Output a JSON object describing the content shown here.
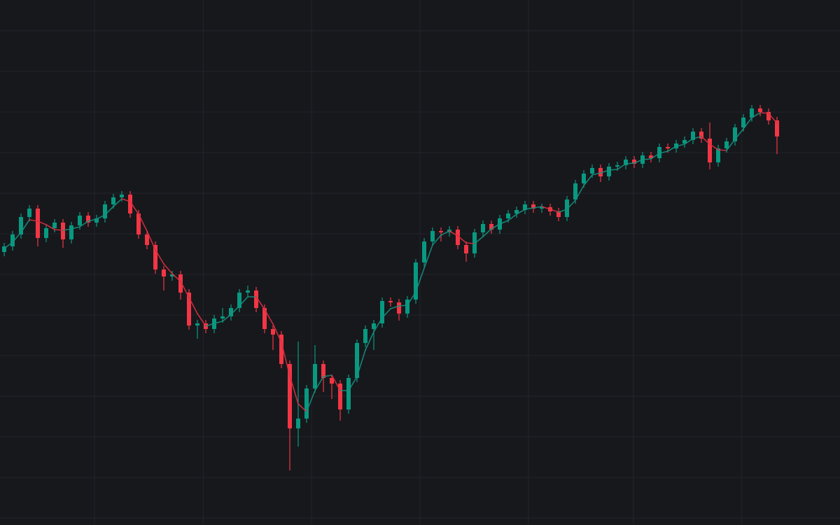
{
  "chart_data": {
    "type": "candlestick",
    "grid": true,
    "up_color": "#089981",
    "down_color": "#f23645",
    "ma_up_color": "#15917f",
    "ma_down_color": "#d9303f",
    "xlim": [
      -0.5,
      99.5
    ],
    "xticks": [
      10.75,
      23.7,
      36.6,
      49.5,
      62.4,
      74.9,
      87.8
    ],
    "ylim": [
      0,
      750
    ],
    "yticks": [
      10,
      68,
      126,
      184,
      242,
      300,
      358,
      416,
      474,
      532,
      590,
      648,
      706
    ],
    "open": [
      390,
      398,
      415,
      440,
      452,
      410,
      424,
      432,
      408,
      428,
      442,
      432,
      438,
      458,
      468,
      472,
      445,
      415,
      400,
      365,
      355,
      358,
      332,
      285,
      288,
      280,
      295,
      298,
      310,
      332,
      335,
      310,
      280,
      272,
      230,
      138,
      152,
      195,
      230,
      210,
      202,
      165,
      210,
      260,
      280,
      288,
      320,
      318,
      302,
      322,
      375,
      405,
      420,
      418,
      422,
      400,
      388,
      418,
      430,
      422,
      438,
      445,
      450,
      458,
      452,
      454,
      448,
      440,
      465,
      488,
      502,
      510,
      498,
      512,
      514,
      522,
      516,
      528,
      524,
      540,
      538,
      545,
      550,
      562,
      552,
      518,
      538,
      548,
      568,
      582,
      595,
      590,
      578
    ],
    "high": [
      403,
      420,
      445,
      457,
      457,
      429,
      437,
      437,
      433,
      447,
      447,
      443,
      463,
      473,
      477,
      477,
      450,
      420,
      405,
      370,
      363,
      363,
      337,
      293,
      293,
      300,
      310,
      315,
      337,
      342,
      340,
      315,
      285,
      277,
      235,
      262,
      200,
      257,
      235,
      215,
      207,
      215,
      265,
      285,
      293,
      325,
      325,
      323,
      327,
      380,
      410,
      425,
      425,
      427,
      427,
      405,
      423,
      435,
      435,
      443,
      450,
      455,
      463,
      463,
      459,
      459,
      453,
      470,
      493,
      507,
      515,
      515,
      517,
      519,
      527,
      527,
      533,
      533,
      545,
      545,
      550,
      555,
      567,
      567,
      575,
      543,
      553,
      573,
      587,
      600,
      600,
      595,
      583
    ],
    "low": [
      384,
      392,
      409,
      434,
      398,
      404,
      418,
      396,
      402,
      422,
      426,
      426,
      432,
      452,
      462,
      439,
      409,
      394,
      359,
      335,
      349,
      322,
      279,
      266,
      274,
      274,
      289,
      292,
      304,
      326,
      304,
      274,
      250,
      224,
      78,
      112,
      146,
      189,
      190,
      180,
      149,
      159,
      204,
      254,
      250,
      282,
      312,
      292,
      296,
      316,
      369,
      399,
      405,
      412,
      394,
      376,
      382,
      412,
      416,
      416,
      432,
      439,
      444,
      446,
      446,
      442,
      434,
      434,
      459,
      482,
      496,
      490,
      492,
      506,
      508,
      510,
      510,
      518,
      518,
      532,
      532,
      539,
      544,
      546,
      508,
      512,
      532,
      542,
      562,
      576,
      584,
      572,
      530
    ],
    "close": [
      398,
      415,
      440,
      452,
      410,
      424,
      432,
      408,
      428,
      442,
      432,
      438,
      458,
      468,
      472,
      445,
      415,
      400,
      365,
      355,
      358,
      332,
      285,
      288,
      280,
      295,
      298,
      310,
      332,
      335,
      310,
      280,
      272,
      230,
      138,
      152,
      195,
      230,
      210,
      202,
      165,
      210,
      260,
      280,
      288,
      320,
      318,
      302,
      322,
      375,
      405,
      420,
      418,
      422,
      400,
      388,
      418,
      430,
      422,
      438,
      445,
      450,
      458,
      452,
      454,
      448,
      440,
      465,
      488,
      502,
      510,
      498,
      512,
      514,
      522,
      516,
      528,
      524,
      540,
      538,
      545,
      550,
      562,
      552,
      518,
      538,
      548,
      568,
      582,
      595,
      590,
      578,
      555
    ],
    "ma": [
      395,
      404,
      418,
      436,
      434,
      429,
      422,
      421,
      423,
      426,
      434,
      437,
      443,
      455,
      466,
      462,
      444,
      420,
      393,
      373,
      359,
      348,
      325,
      302,
      284,
      288,
      291,
      301,
      313,
      326,
      326,
      308,
      287,
      261,
      213,
      173,
      162,
      192,
      212,
      214,
      192,
      192,
      212,
      250,
      276,
      296,
      309,
      313,
      314,
      333,
      367,
      400,
      414,
      420,
      413,
      403,
      402,
      412,
      423,
      430,
      435,
      444,
      451,
      453,
      455,
      451,
      447,
      451,
      464,
      485,
      500,
      503,
      507,
      508,
      516,
      517,
      522,
      523,
      531,
      534,
      541,
      544,
      552,
      555,
      544,
      536,
      535,
      551,
      566,
      582,
      589,
      588,
      574
    ]
  }
}
